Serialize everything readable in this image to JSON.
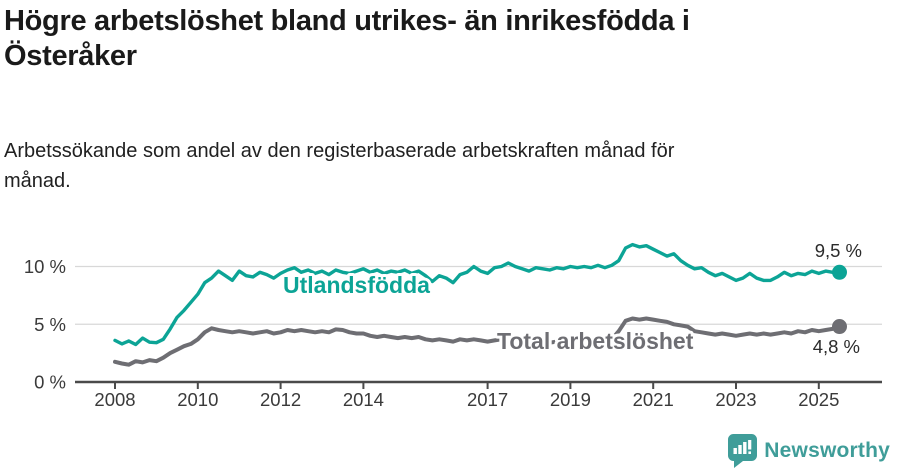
{
  "header": {
    "title_line1": "Högre arbetslöshet bland utrikes- än inrikesfödda i",
    "title_line2": "Österåker",
    "subtitle_line1": "Arbetssökande som andel av den registerbaserade arbetskraften månad för",
    "subtitle_line2": "månad."
  },
  "footer": {
    "brand": "Newsworthy",
    "brand_color": "#3f9d99",
    "logo_icon": "bar-chart-speech-bubble"
  },
  "chart_data": {
    "type": "line",
    "title": "Högre arbetslöshet bland utrikes- än inrikesfödda i Österåker",
    "subtitle": "Arbetssökande som andel av den registerbaserade arbetskraften månad för månad.",
    "xlabel": "",
    "ylabel": "",
    "grid": "horizontal-only",
    "x_start": 2008.0,
    "x_step_years": 0.166667,
    "x_end": 2025.5,
    "x_tick_years": [
      2008,
      2010,
      2012,
      2014,
      2017,
      2019,
      2021,
      2023,
      2025
    ],
    "x_tick_labels": [
      "2008",
      "2010",
      "2012",
      "2014",
      "2017",
      "2019",
      "2021",
      "2023",
      "2025"
    ],
    "y_ticks": [
      0,
      5,
      10
    ],
    "y_tick_labels": [
      "0 %",
      "5 %",
      "10 %"
    ],
    "ylim": [
      0,
      12.7
    ],
    "colors": {
      "gridline": "#d8d8d8",
      "axis": "#4a4a4a",
      "tick_label": "#3a3a3a",
      "value_label": "#2b2b2b"
    },
    "series": [
      {
        "name": "Utlandsfödda",
        "color": "#0ca496",
        "end_label": "9,5 %",
        "end_value": 9.5,
        "values": [
          3.6,
          3.3,
          3.55,
          3.25,
          3.8,
          3.45,
          3.4,
          3.7,
          4.6,
          5.6,
          6.2,
          6.9,
          7.6,
          8.6,
          9.0,
          9.6,
          9.2,
          8.8,
          9.6,
          9.2,
          9.1,
          9.5,
          9.3,
          9.0,
          9.4,
          9.7,
          9.9,
          9.5,
          9.7,
          9.4,
          9.6,
          9.3,
          9.7,
          9.5,
          9.4,
          9.6,
          9.8,
          9.5,
          9.7,
          9.4,
          9.6,
          9.5,
          9.7,
          9.4,
          9.6,
          9.2,
          8.7,
          9.2,
          9.0,
          8.6,
          9.3,
          9.5,
          10.0,
          9.6,
          9.4,
          9.9,
          10.0,
          10.3,
          10.0,
          9.8,
          9.6,
          9.9,
          9.8,
          9.7,
          9.9,
          9.8,
          10.0,
          9.9,
          10.0,
          9.9,
          10.1,
          9.9,
          10.1,
          10.5,
          11.6,
          11.9,
          11.7,
          11.8,
          11.5,
          11.2,
          10.9,
          11.1,
          10.5,
          10.1,
          9.8,
          9.9,
          9.5,
          9.2,
          9.4,
          9.1,
          8.8,
          9.0,
          9.4,
          9.0,
          8.8,
          8.8,
          9.1,
          9.5,
          9.2,
          9.4,
          9.3,
          9.6,
          9.4,
          9.6,
          9.5,
          9.5
        ]
      },
      {
        "name": "Total arbetslöshet",
        "color": "#6e6e73",
        "end_label": "4,8 %",
        "end_value": 4.8,
        "values": [
          1.75,
          1.6,
          1.5,
          1.8,
          1.7,
          1.9,
          1.8,
          2.1,
          2.5,
          2.8,
          3.1,
          3.3,
          3.7,
          4.3,
          4.65,
          4.5,
          4.4,
          4.3,
          4.4,
          4.3,
          4.2,
          4.3,
          4.4,
          4.2,
          4.3,
          4.5,
          4.4,
          4.5,
          4.4,
          4.3,
          4.4,
          4.3,
          4.55,
          4.5,
          4.3,
          4.2,
          4.2,
          4.0,
          3.9,
          4.0,
          3.9,
          3.8,
          3.9,
          3.8,
          3.9,
          3.7,
          3.6,
          3.7,
          3.6,
          3.5,
          3.7,
          3.6,
          3.7,
          3.6,
          3.5,
          3.6,
          3.7,
          3.6,
          3.5,
          3.6,
          3.5,
          3.4,
          3.5,
          3.4,
          3.5,
          3.4,
          3.5,
          3.5,
          3.6,
          3.5,
          3.6,
          3.6,
          3.7,
          4.4,
          5.3,
          5.5,
          5.4,
          5.5,
          5.4,
          5.3,
          5.2,
          5.0,
          4.9,
          4.8,
          4.4,
          4.3,
          4.2,
          4.1,
          4.2,
          4.1,
          4.0,
          4.1,
          4.2,
          4.1,
          4.2,
          4.1,
          4.2,
          4.3,
          4.2,
          4.4,
          4.3,
          4.5,
          4.4,
          4.5,
          4.6,
          4.8
        ]
      }
    ],
    "legend_position": "inline-labels-on-lines"
  }
}
